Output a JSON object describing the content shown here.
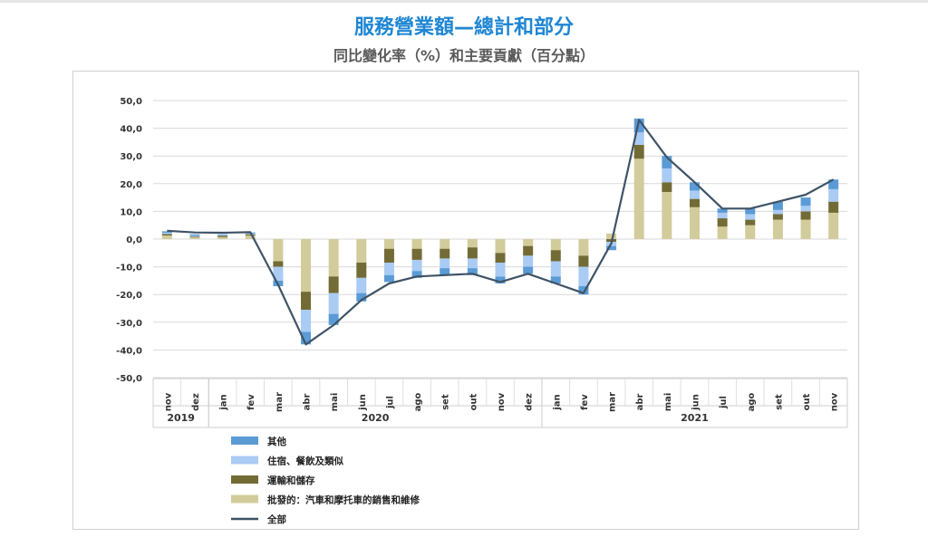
{
  "title": "服務營業額—總計和部分",
  "subtitle": "同比變化率（%）和主要貢獻（百分點）",
  "chart_data": {
    "type": "bar",
    "stacked": true,
    "categories": [
      "nov",
      "dez",
      "jan",
      "fev",
      "mar",
      "abr",
      "mai",
      "jun",
      "jul",
      "ago",
      "set",
      "out",
      "nov",
      "dez",
      "jan",
      "fev",
      "mar",
      "abr",
      "mai",
      "jun",
      "jul",
      "ago",
      "set",
      "out",
      "nov"
    ],
    "years": [
      {
        "label": "2019",
        "from": 0,
        "to": 1
      },
      {
        "label": "2020",
        "from": 2,
        "to": 13
      },
      {
        "label": "2021",
        "from": 14,
        "to": 24
      }
    ],
    "ylim": [
      -50,
      50
    ],
    "yticks": [
      {
        "v": 50,
        "label": "50,0"
      },
      {
        "v": 40,
        "label": "40,0"
      },
      {
        "v": 30,
        "label": "30,0"
      },
      {
        "v": 20,
        "label": "20,0"
      },
      {
        "v": 10,
        "label": "10,0"
      },
      {
        "v": 0,
        "label": "0,0"
      },
      {
        "v": -10,
        "label": "-10,0"
      },
      {
        "v": -20,
        "label": "-20,0"
      },
      {
        "v": -30,
        "label": "-30,0"
      },
      {
        "v": -40,
        "label": "-40,0"
      },
      {
        "v": -50,
        "label": "-50,0"
      }
    ],
    "grid": true,
    "legend_position": "bottom-left",
    "series": [
      {
        "name": "批發的：汽車和摩托車的銷售和維修",
        "color": "#d2cc9c",
        "values": [
          1.3,
          0.6,
          0.7,
          1.3,
          -8.0,
          -19.0,
          -13.5,
          -8.5,
          -3.5,
          -3.5,
          -3.5,
          -3.0,
          -5.0,
          -2.5,
          -4.0,
          -6.0,
          2.0,
          29.0,
          17.0,
          11.5,
          4.5,
          5.0,
          7.0,
          7.0,
          9.5
        ]
      },
      {
        "name": "運輸和儲存",
        "color": "#736b35",
        "values": [
          0.5,
          0.3,
          0.5,
          0.4,
          -2.0,
          -6.5,
          -6.0,
          -5.5,
          -5.0,
          -4.0,
          -3.5,
          -4.0,
          -3.5,
          -3.5,
          -4.0,
          -4.0,
          -1.0,
          5.0,
          3.5,
          3.0,
          3.0,
          2.0,
          2.0,
          3.0,
          4.0
        ]
      },
      {
        "name": "住宿、餐飲及類似",
        "color": "#a9cbf4",
        "values": [
          0.5,
          0.3,
          0.2,
          0.3,
          -5.0,
          -8.0,
          -7.5,
          -5.5,
          -4.5,
          -4.0,
          -3.5,
          -3.5,
          -5.0,
          -4.0,
          -5.5,
          -7.0,
          -1.5,
          4.5,
          5.0,
          3.0,
          2.0,
          2.0,
          1.5,
          2.0,
          4.5
        ]
      },
      {
        "name": "其他",
        "color": "#5b9bd5",
        "values": [
          0.5,
          0.5,
          0.3,
          0.4,
          -2.0,
          -4.5,
          -4.0,
          -3.0,
          -2.5,
          -2.5,
          -2.5,
          -2.5,
          -2.5,
          -2.5,
          -2.5,
          -3.0,
          -1.5,
          5.0,
          4.5,
          3.0,
          1.5,
          2.0,
          3.0,
          3.0,
          3.5
        ]
      }
    ],
    "line": {
      "name": "全部",
      "color": "#3f5366",
      "values": [
        3.0,
        2.4,
        2.3,
        2.5,
        -16.5,
        -38.0,
        -31.0,
        -22.0,
        -16.0,
        -13.5,
        -13.0,
        -12.5,
        -15.5,
        -12.5,
        -16.0,
        -19.5,
        -1.5,
        43.0,
        29.5,
        20.5,
        11.0,
        11.0,
        13.5,
        16.0,
        21.5
      ]
    }
  }
}
